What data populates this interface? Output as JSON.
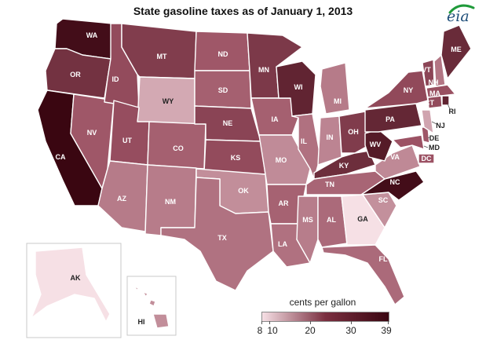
{
  "title": "State gasoline taxes as of January 1, 2013",
  "logo_text": "eia",
  "legend": {
    "title": "cents per gallon",
    "ticks": [
      "8",
      "10",
      "20",
      "30",
      "39"
    ],
    "min": 8,
    "max": 39
  },
  "colors": {
    "low": "#f6e0e5",
    "mid": "#9c5264",
    "high": "#3a0611",
    "border": "#ffffff",
    "inset_border": "#c9c9c9"
  },
  "states": [
    {
      "id": "WA",
      "tax": 37.5
    },
    {
      "id": "OR",
      "tax": 30
    },
    {
      "id": "CA",
      "tax": 39
    },
    {
      "id": "ID",
      "tax": 25
    },
    {
      "id": "NV",
      "tax": 23
    },
    {
      "id": "MT",
      "tax": 27.75
    },
    {
      "id": "WY",
      "tax": 14
    },
    {
      "id": "UT",
      "tax": 24.5
    },
    {
      "id": "AZ",
      "tax": 19
    },
    {
      "id": "CO",
      "tax": 22
    },
    {
      "id": "NM",
      "tax": 18.875
    },
    {
      "id": "ND",
      "tax": 23
    },
    {
      "id": "SD",
      "tax": 22
    },
    {
      "id": "NE",
      "tax": 26.3
    },
    {
      "id": "KS",
      "tax": 25
    },
    {
      "id": "OK",
      "tax": 17
    },
    {
      "id": "TX",
      "tax": 20
    },
    {
      "id": "MN",
      "tax": 28.6
    },
    {
      "id": "IA",
      "tax": 22
    },
    {
      "id": "MO",
      "tax": 17.3
    },
    {
      "id": "AR",
      "tax": 21.8
    },
    {
      "id": "LA",
      "tax": 20.125
    },
    {
      "id": "WI",
      "tax": 32.9
    },
    {
      "id": "IL",
      "tax": 20.1
    },
    {
      "id": "MI",
      "tax": 19
    },
    {
      "id": "IN",
      "tax": 18
    },
    {
      "id": "OH",
      "tax": 28
    },
    {
      "id": "KY",
      "tax": 30.9
    },
    {
      "id": "TN",
      "tax": 21.4
    },
    {
      "id": "MS",
      "tax": 18.8
    },
    {
      "id": "AL",
      "tax": 20.9
    },
    {
      "id": "GA",
      "tax": 7.5
    },
    {
      "id": "FL",
      "tax": 20.9
    },
    {
      "id": "SC",
      "tax": 16.75
    },
    {
      "id": "NC",
      "tax": 37.5
    },
    {
      "id": "VA",
      "tax": 17.5
    },
    {
      "id": "WV",
      "tax": 34.7
    },
    {
      "id": "PA",
      "tax": 32.3
    },
    {
      "id": "NY",
      "tax": 25.3
    },
    {
      "id": "VT",
      "tax": 26.1
    },
    {
      "id": "NH",
      "tax": 19.6
    },
    {
      "id": "ME",
      "tax": 31.5
    },
    {
      "id": "MA",
      "tax": 24
    },
    {
      "id": "RI",
      "tax": 33
    },
    {
      "id": "CT",
      "tax": 25
    },
    {
      "id": "NJ",
      "tax": 14.5
    },
    {
      "id": "DE",
      "tax": 23
    },
    {
      "id": "MD",
      "tax": 23.5
    },
    {
      "id": "DC",
      "tax": 23.5
    },
    {
      "id": "AK",
      "tax": 8
    },
    {
      "id": "HI",
      "tax": 17
    }
  ]
}
